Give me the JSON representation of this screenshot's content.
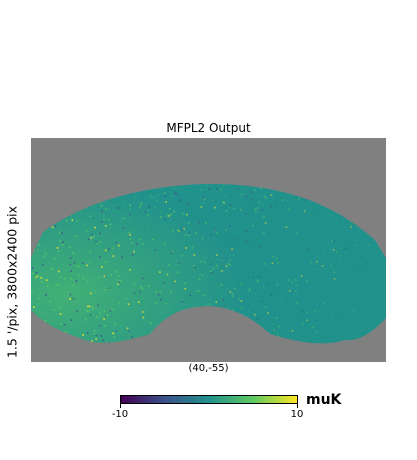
{
  "chart_data": {
    "type": "heatmap",
    "title": "MFPL2 Output",
    "center_label": "(40,-55)",
    "ylabel": "1.5 '/pix,   3800x2400 pix",
    "colormap": "viridis",
    "missing_color": "#808080",
    "colorbar": {
      "min": -10,
      "max": 10,
      "min_label": "-10",
      "max_label": "10",
      "unit": "muK"
    },
    "colors": {
      "viridis_low": "#440154",
      "viridis_q1": "#3b528b",
      "viridis_mid": "#21918c",
      "viridis_q3": "#5ec962",
      "viridis_high": "#fde725"
    }
  }
}
